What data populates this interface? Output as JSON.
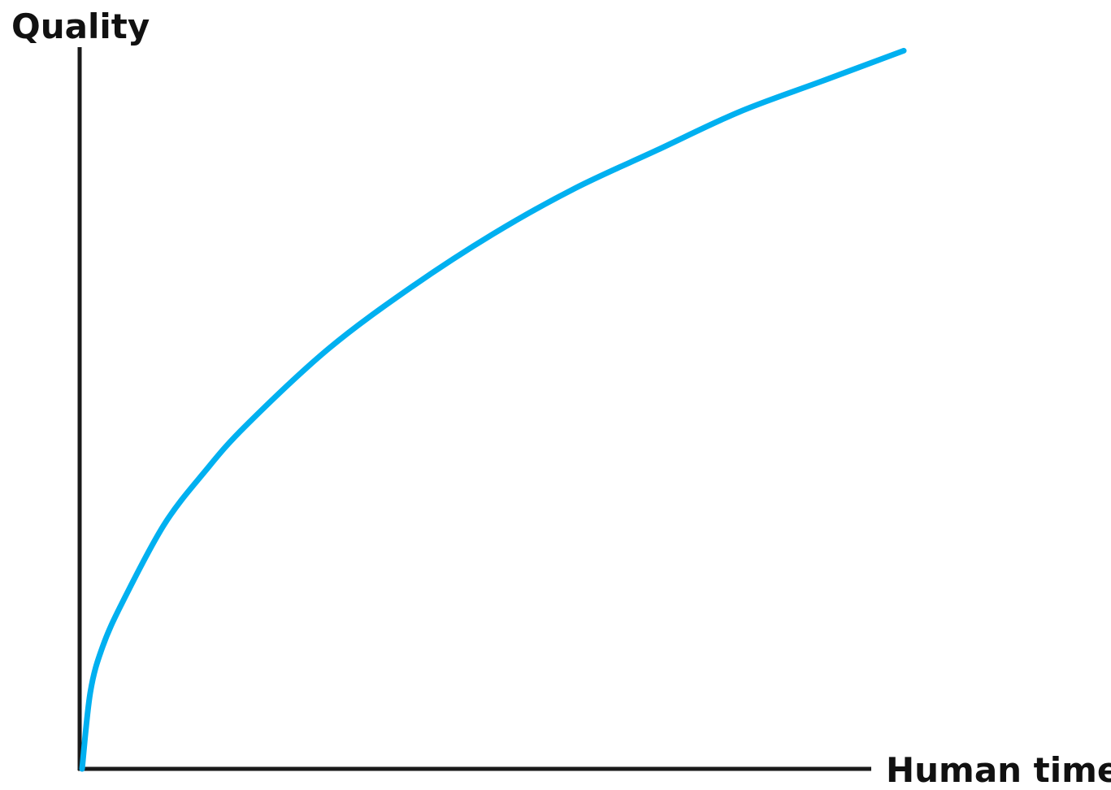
{
  "chart_data": {
    "type": "line",
    "title": "",
    "xlabel": "Human time",
    "ylabel": "Quality",
    "grid": false,
    "ticks": false,
    "xlim": [
      0,
      1
    ],
    "ylim": [
      0,
      1
    ],
    "series": [
      {
        "color": "#00B0F0",
        "x": [
          0,
          0.01,
          0.025,
          0.05,
          0.1,
          0.15,
          0.2,
          0.3,
          0.4,
          0.5,
          0.6,
          0.7,
          0.8,
          0.9,
          1.0
        ],
        "y": [
          0,
          0.1,
          0.16,
          0.22,
          0.32,
          0.39,
          0.45,
          0.55,
          0.63,
          0.7,
          0.76,
          0.81,
          0.86,
          0.9,
          0.94
        ]
      }
    ]
  },
  "colors": {
    "axis": "#1A1A1A",
    "curve": "#00B0F0"
  }
}
